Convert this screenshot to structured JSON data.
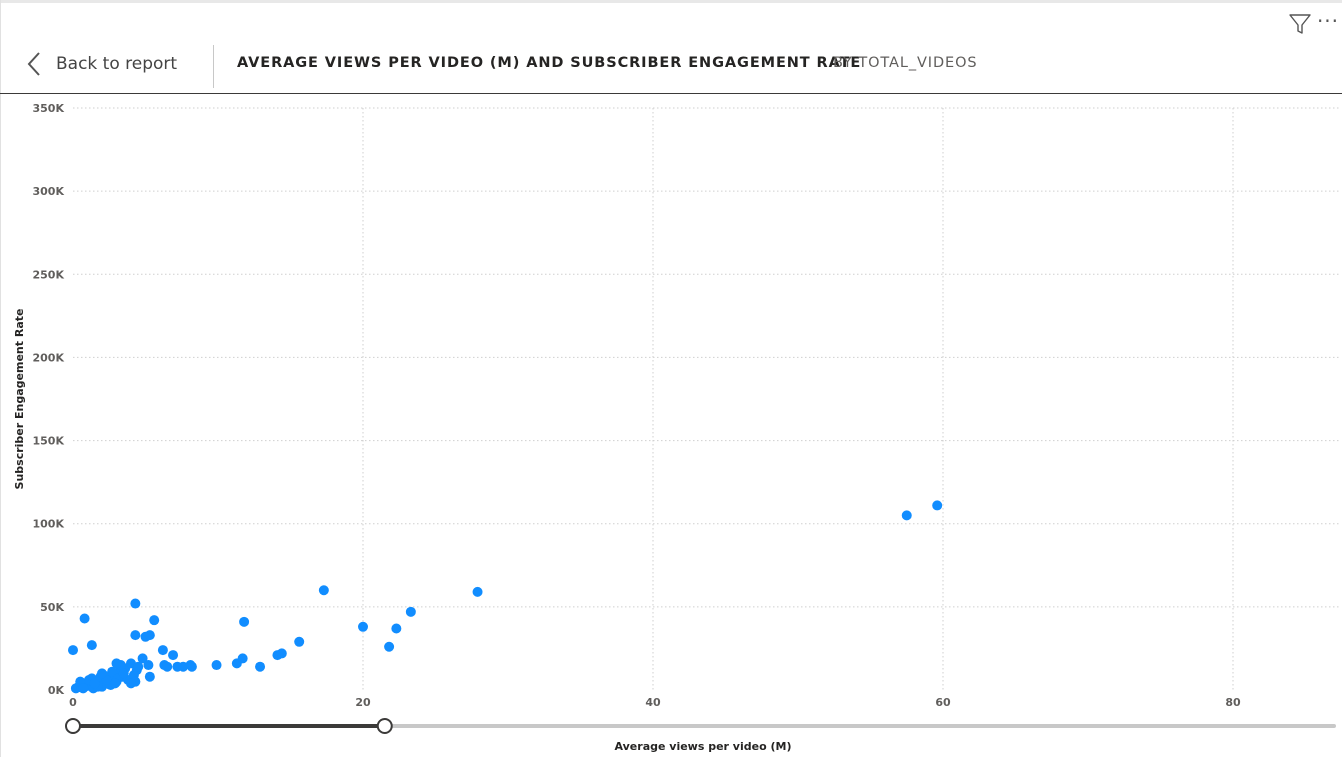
{
  "header": {
    "back_label": "Back to report",
    "title": "AVERAGE VIEWS PER VIDEO (M) AND SUBSCRIBER ENGAGEMENT RATE",
    "subtitle": "BY TOTAL_VIDEOS"
  },
  "icons": {
    "back": "chevron-left-icon",
    "filter": "filter-icon",
    "more": "more-options-icon"
  },
  "colors": {
    "point": "#118DFF",
    "grid": "#cfcfcf",
    "slider_active": "#3b3a39",
    "slider_track": "#c8c8c8"
  },
  "chart_data": {
    "type": "scatter",
    "title": "",
    "xlabel": "Average views per video (M)",
    "ylabel": "Subscriber Engagement Rate",
    "xlim": [
      0,
      86
    ],
    "ylim": [
      0,
      350000
    ],
    "x_ticks": [
      0,
      20,
      40,
      60,
      80
    ],
    "x_tick_labels": [
      "0",
      "20",
      "40",
      "60",
      "80"
    ],
    "y_ticks": [
      0,
      50000,
      100000,
      150000,
      200000,
      250000,
      300000,
      350000
    ],
    "y_tick_labels": [
      "0K",
      "50K",
      "100K",
      "150K",
      "200K",
      "250K",
      "300K",
      "350K"
    ],
    "grid": true,
    "x_slider_range": [
      0,
      21.5
    ],
    "points": [
      [
        0,
        24000
      ],
      [
        0.2,
        1000
      ],
      [
        0.4,
        2000
      ],
      [
        0.6,
        1500
      ],
      [
        0.8,
        3000
      ],
      [
        0.9,
        4000
      ],
      [
        1.0,
        2500
      ],
      [
        1.2,
        5000
      ],
      [
        1.4,
        1000
      ],
      [
        1.6,
        3500
      ],
      [
        1.8,
        6000
      ],
      [
        2.0,
        2000
      ],
      [
        2.2,
        4500
      ],
      [
        2.4,
        7000
      ],
      [
        2.6,
        3000
      ],
      [
        2.8,
        9000
      ],
      [
        3.0,
        5000
      ],
      [
        3.2,
        11000
      ],
      [
        3.4,
        8000
      ],
      [
        3.6,
        13000
      ],
      [
        3.8,
        6000
      ],
      [
        4.0,
        16000
      ],
      [
        4.2,
        9000
      ],
      [
        4.4,
        12000
      ],
      [
        1.3,
        7000
      ],
      [
        1.7,
        2000
      ],
      [
        2.1,
        9000
      ],
      [
        2.5,
        3500
      ],
      [
        2.7,
        11000
      ],
      [
        3.1,
        7000
      ],
      [
        3.3,
        15000
      ],
      [
        0.5,
        5000
      ],
      [
        0.7,
        1000
      ],
      [
        1.1,
        6000
      ],
      [
        1.5,
        4000
      ],
      [
        1.9,
        8000
      ],
      [
        2.3,
        6000
      ],
      [
        2.9,
        4000
      ],
      [
        3.5,
        10000
      ],
      [
        4.3,
        5000
      ],
      [
        4.5,
        14000
      ],
      [
        4.8,
        19000
      ],
      [
        5.0,
        32000
      ],
      [
        5.2,
        15000
      ],
      [
        5.3,
        33000
      ],
      [
        5.6,
        42000
      ],
      [
        4.3,
        52000
      ],
      [
        4.3,
        33000
      ],
      [
        1.3,
        27000
      ],
      [
        0.8,
        43000
      ],
      [
        6.2,
        24000
      ],
      [
        6.3,
        15000
      ],
      [
        6.5,
        14000
      ],
      [
        6.9,
        21000
      ],
      [
        7.2,
        14000
      ],
      [
        7.6,
        14000
      ],
      [
        8.1,
        15000
      ],
      [
        8.2,
        14000
      ],
      [
        9.9,
        15000
      ],
      [
        11.3,
        16000
      ],
      [
        11.7,
        19000
      ],
      [
        11.8,
        41000
      ],
      [
        12.9,
        14000
      ],
      [
        14.1,
        21000
      ],
      [
        14.4,
        22000
      ],
      [
        15.6,
        29000
      ],
      [
        17.3,
        60000
      ],
      [
        20.0,
        38000
      ],
      [
        21.8,
        26000
      ],
      [
        22.3,
        37000
      ],
      [
        23.3,
        47000
      ],
      [
        27.9,
        59000
      ],
      [
        57.5,
        105000
      ],
      [
        59.6,
        111000
      ],
      [
        5.3,
        8000
      ],
      [
        4.0,
        4000
      ],
      [
        3.0,
        16000
      ],
      [
        2.0,
        10000
      ]
    ]
  }
}
